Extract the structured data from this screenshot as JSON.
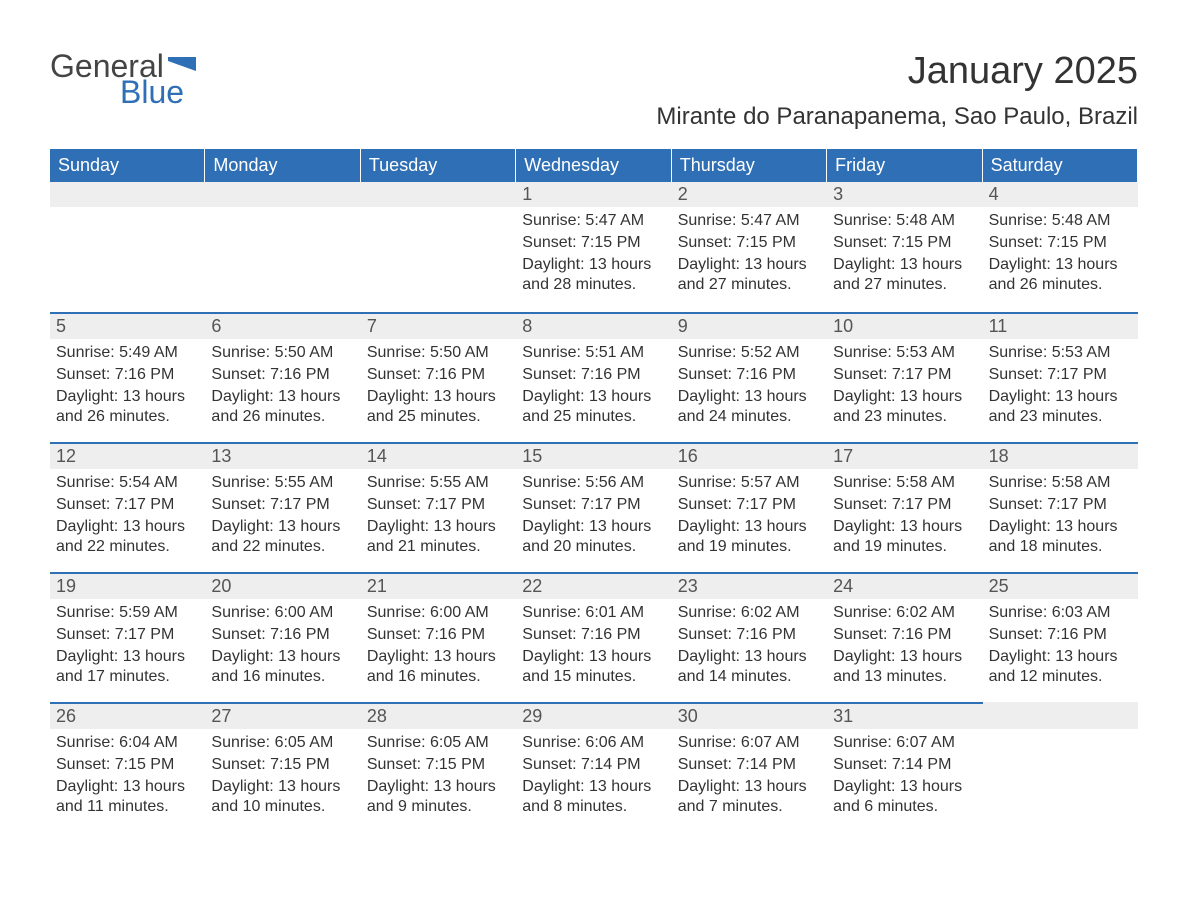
{
  "logo": {
    "text1": "General",
    "text2": "Blue",
    "flag_color": "#2f6fb5"
  },
  "title": {
    "month_year": "January 2025",
    "location": "Mirante do Paranapanema, Sao Paulo, Brazil"
  },
  "weekday_labels": [
    "Sunday",
    "Monday",
    "Tuesday",
    "Wednesday",
    "Thursday",
    "Friday",
    "Saturday"
  ],
  "colors": {
    "header_bg": "#2f6fb5",
    "header_text": "#ffffff",
    "daynum_bg": "#eeeeee",
    "daynum_border": "#2f6fb5",
    "body_text": "#333333",
    "page_bg": "#ffffff"
  },
  "fonts": {
    "title_size_pt": 28,
    "location_size_pt": 18,
    "weekday_size_pt": 14,
    "daynum_size_pt": 14,
    "body_size_pt": 12
  },
  "calendar": {
    "first_weekday_index": 3,
    "days": [
      {
        "n": 1,
        "sunrise": "5:47 AM",
        "sunset": "7:15 PM",
        "daylight": "13 hours and 28 minutes."
      },
      {
        "n": 2,
        "sunrise": "5:47 AM",
        "sunset": "7:15 PM",
        "daylight": "13 hours and 27 minutes."
      },
      {
        "n": 3,
        "sunrise": "5:48 AM",
        "sunset": "7:15 PM",
        "daylight": "13 hours and 27 minutes."
      },
      {
        "n": 4,
        "sunrise": "5:48 AM",
        "sunset": "7:15 PM",
        "daylight": "13 hours and 26 minutes."
      },
      {
        "n": 5,
        "sunrise": "5:49 AM",
        "sunset": "7:16 PM",
        "daylight": "13 hours and 26 minutes."
      },
      {
        "n": 6,
        "sunrise": "5:50 AM",
        "sunset": "7:16 PM",
        "daylight": "13 hours and 26 minutes."
      },
      {
        "n": 7,
        "sunrise": "5:50 AM",
        "sunset": "7:16 PM",
        "daylight": "13 hours and 25 minutes."
      },
      {
        "n": 8,
        "sunrise": "5:51 AM",
        "sunset": "7:16 PM",
        "daylight": "13 hours and 25 minutes."
      },
      {
        "n": 9,
        "sunrise": "5:52 AM",
        "sunset": "7:16 PM",
        "daylight": "13 hours and 24 minutes."
      },
      {
        "n": 10,
        "sunrise": "5:53 AM",
        "sunset": "7:17 PM",
        "daylight": "13 hours and 23 minutes."
      },
      {
        "n": 11,
        "sunrise": "5:53 AM",
        "sunset": "7:17 PM",
        "daylight": "13 hours and 23 minutes."
      },
      {
        "n": 12,
        "sunrise": "5:54 AM",
        "sunset": "7:17 PM",
        "daylight": "13 hours and 22 minutes."
      },
      {
        "n": 13,
        "sunrise": "5:55 AM",
        "sunset": "7:17 PM",
        "daylight": "13 hours and 22 minutes."
      },
      {
        "n": 14,
        "sunrise": "5:55 AM",
        "sunset": "7:17 PM",
        "daylight": "13 hours and 21 minutes."
      },
      {
        "n": 15,
        "sunrise": "5:56 AM",
        "sunset": "7:17 PM",
        "daylight": "13 hours and 20 minutes."
      },
      {
        "n": 16,
        "sunrise": "5:57 AM",
        "sunset": "7:17 PM",
        "daylight": "13 hours and 19 minutes."
      },
      {
        "n": 17,
        "sunrise": "5:58 AM",
        "sunset": "7:17 PM",
        "daylight": "13 hours and 19 minutes."
      },
      {
        "n": 18,
        "sunrise": "5:58 AM",
        "sunset": "7:17 PM",
        "daylight": "13 hours and 18 minutes."
      },
      {
        "n": 19,
        "sunrise": "5:59 AM",
        "sunset": "7:17 PM",
        "daylight": "13 hours and 17 minutes."
      },
      {
        "n": 20,
        "sunrise": "6:00 AM",
        "sunset": "7:16 PM",
        "daylight": "13 hours and 16 minutes."
      },
      {
        "n": 21,
        "sunrise": "6:00 AM",
        "sunset": "7:16 PM",
        "daylight": "13 hours and 16 minutes."
      },
      {
        "n": 22,
        "sunrise": "6:01 AM",
        "sunset": "7:16 PM",
        "daylight": "13 hours and 15 minutes."
      },
      {
        "n": 23,
        "sunrise": "6:02 AM",
        "sunset": "7:16 PM",
        "daylight": "13 hours and 14 minutes."
      },
      {
        "n": 24,
        "sunrise": "6:02 AM",
        "sunset": "7:16 PM",
        "daylight": "13 hours and 13 minutes."
      },
      {
        "n": 25,
        "sunrise": "6:03 AM",
        "sunset": "7:16 PM",
        "daylight": "13 hours and 12 minutes."
      },
      {
        "n": 26,
        "sunrise": "6:04 AM",
        "sunset": "7:15 PM",
        "daylight": "13 hours and 11 minutes."
      },
      {
        "n": 27,
        "sunrise": "6:05 AM",
        "sunset": "7:15 PM",
        "daylight": "13 hours and 10 minutes."
      },
      {
        "n": 28,
        "sunrise": "6:05 AM",
        "sunset": "7:15 PM",
        "daylight": "13 hours and 9 minutes."
      },
      {
        "n": 29,
        "sunrise": "6:06 AM",
        "sunset": "7:14 PM",
        "daylight": "13 hours and 8 minutes."
      },
      {
        "n": 30,
        "sunrise": "6:07 AM",
        "sunset": "7:14 PM",
        "daylight": "13 hours and 7 minutes."
      },
      {
        "n": 31,
        "sunrise": "6:07 AM",
        "sunset": "7:14 PM",
        "daylight": "13 hours and 6 minutes."
      }
    ],
    "labels": {
      "sunrise_prefix": "Sunrise: ",
      "sunset_prefix": "Sunset: ",
      "daylight_prefix": "Daylight: "
    }
  }
}
